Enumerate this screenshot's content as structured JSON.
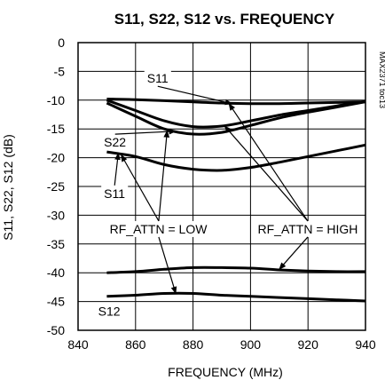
{
  "chart_data": {
    "type": "line",
    "title": "S11, S22, S12 vs. FREQUENCY",
    "xlabel": "FREQUENCY (MHz)",
    "ylabel": "S11, S22, S12 (dB)",
    "side_label": "MAX2371 toc13",
    "xlim": [
      840,
      940
    ],
    "ylim": [
      -50,
      0
    ],
    "xticks": [
      840,
      860,
      880,
      900,
      920,
      940
    ],
    "yticks": [
      0,
      -5,
      -10,
      -15,
      -20,
      -25,
      -30,
      -35,
      -40,
      -45,
      -50
    ],
    "grid": true,
    "series": [
      {
        "x": [
          850,
          860,
          870,
          880,
          890,
          900,
          910,
          920,
          930,
          940
        ],
        "y": [
          -9.8,
          -9.9,
          -10.1,
          -10.3,
          -10.5,
          -10.6,
          -10.6,
          -10.5,
          -10.4,
          -10.3
        ]
      },
      {
        "x": [
          850,
          860,
          870,
          880,
          890,
          900,
          910,
          920,
          930,
          940
        ],
        "y": [
          -10.0,
          -11.8,
          -13.6,
          -14.6,
          -14.5,
          -13.6,
          -12.6,
          -11.8,
          -11.0,
          -10.2
        ]
      },
      {
        "x": [
          850,
          860,
          870,
          880,
          890,
          900,
          910,
          920,
          930,
          940
        ],
        "y": [
          -10.5,
          -12.8,
          -15.0,
          -15.9,
          -15.6,
          -14.4,
          -13.1,
          -12.1,
          -11.2,
          -10.3
        ]
      },
      {
        "x": [
          850,
          860,
          870,
          880,
          890,
          900,
          910,
          920,
          930,
          940
        ],
        "y": [
          -19.0,
          -19.8,
          -21.2,
          -22.0,
          -22.2,
          -21.7,
          -20.8,
          -19.8,
          -18.8,
          -17.8
        ]
      },
      {
        "x": [
          850,
          860,
          870,
          880,
          890,
          900,
          910,
          920,
          930,
          940
        ],
        "y": [
          -40.0,
          -39.8,
          -39.4,
          -39.1,
          -39.1,
          -39.2,
          -39.5,
          -39.7,
          -39.8,
          -39.8
        ]
      },
      {
        "x": [
          850,
          860,
          870,
          880,
          890,
          900,
          910,
          920,
          930,
          940
        ],
        "y": [
          -44.1,
          -43.9,
          -43.6,
          -43.6,
          -43.9,
          -44.1,
          -44.3,
          -44.5,
          -44.7,
          -44.9
        ]
      }
    ],
    "annotations": [
      {
        "text": "S11",
        "x": 864,
        "y": -6.2,
        "anchor": "start",
        "pointers": [
          [
            893.5,
            -10.6
          ]
        ]
      },
      {
        "text": "S22",
        "x": 849,
        "y": -17.3,
        "anchor": "start",
        "pointers": [
          [
            874,
            -15.4
          ]
        ]
      },
      {
        "text": "S11",
        "x": 849,
        "y": -26.2,
        "anchor": "start",
        "pointers": [
          [
            854,
            -19.2
          ]
        ]
      },
      {
        "text": "RF_ATTN = LOW",
        "x": 851,
        "y": -32.4,
        "anchor": "start",
        "pointers": [
          [
            871,
            -15.3
          ],
          [
            855,
            -19.5
          ],
          [
            874,
            -43.6
          ]
        ]
      },
      {
        "text": "RF_ATTN = HIGH",
        "x": 902.5,
        "y": -32.4,
        "anchor": "start",
        "pointers": [
          [
            892.5,
            -10.6
          ],
          [
            891,
            -14.5
          ],
          [
            910,
            -39.4
          ]
        ]
      },
      {
        "text": "S12",
        "x": 847,
        "y": -46.7,
        "anchor": "start",
        "pointers": []
      }
    ]
  }
}
